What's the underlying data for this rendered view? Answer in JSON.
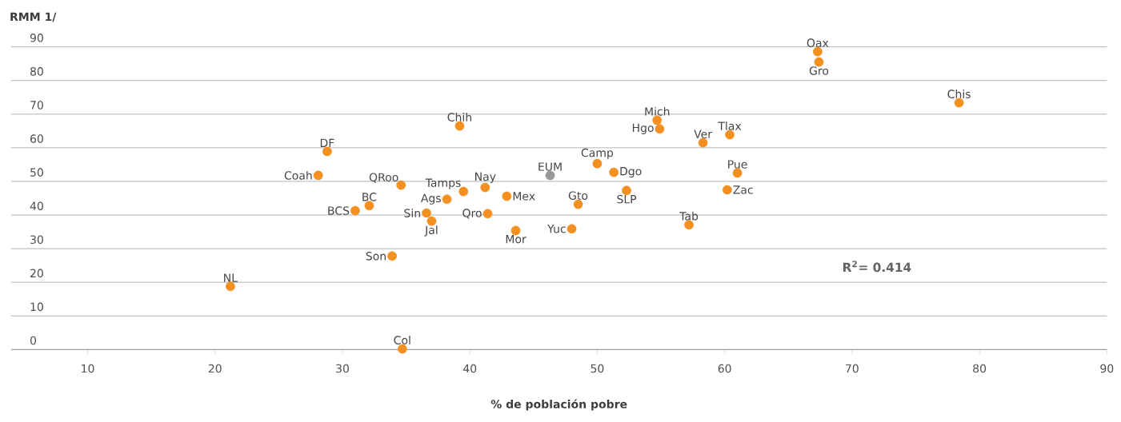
{
  "chart_data": {
    "type": "scatter",
    "xlabel": "% de población pobre",
    "ylabel": "RMM 1/",
    "marker": "circle",
    "grid": "y",
    "xlim": [
      4,
      90
    ],
    "ylim": [
      0,
      90
    ],
    "xticks": [
      10,
      20,
      30,
      40,
      50,
      60,
      70,
      80,
      90
    ],
    "yticks": [
      0,
      10,
      20,
      30,
      40,
      50,
      60,
      70,
      80,
      90
    ],
    "x": [
      67.3,
      67.4,
      78.4,
      54.7,
      54.9,
      60.4,
      58.3,
      39.2,
      28.8,
      50.0,
      51.3,
      61.0,
      46.3,
      28.1,
      34.6,
      41.2,
      39.5,
      60.2,
      52.3,
      42.9,
      38.2,
      48.5,
      32.1,
      31.0,
      36.6,
      41.4,
      37.0,
      57.2,
      48.0,
      43.6,
      33.9,
      21.2,
      34.7
    ],
    "values": [
      88.6,
      85.5,
      73.4,
      68.2,
      65.6,
      63.9,
      61.5,
      66.5,
      58.9,
      55.3,
      52.7,
      52.5,
      51.8,
      51.8,
      48.9,
      48.2,
      47.0,
      47.5,
      47.3,
      45.6,
      44.7,
      43.2,
      42.8,
      41.3,
      40.6,
      40.4,
      38.2,
      37.1,
      35.9,
      35.4,
      27.8,
      18.8,
      0.2
    ],
    "colors": [
      "#f39020",
      "#f39020",
      "#f39020",
      "#f39020",
      "#f39020",
      "#f39020",
      "#f39020",
      "#f39020",
      "#f39020",
      "#f39020",
      "#f39020",
      "#f39020",
      "#999999",
      "#f39020",
      "#f39020",
      "#f39020",
      "#f39020",
      "#f39020",
      "#f39020",
      "#f39020",
      "#f39020",
      "#f39020",
      "#f39020",
      "#f39020",
      "#f39020",
      "#f39020",
      "#f39020",
      "#f39020",
      "#f39020",
      "#f39020",
      "#f39020",
      "#f39020",
      "#f39020"
    ],
    "annotations": [
      {
        "text": "Oax",
        "x": 67.3,
        "y": 88.6
      },
      {
        "text": "Gro",
        "x": 67.4,
        "y": 85.5
      },
      {
        "text": "Chis",
        "x": 78.4,
        "y": 73.4
      },
      {
        "text": "Mich",
        "x": 54.7,
        "y": 68.2
      },
      {
        "text": "Hgo",
        "x": 54.9,
        "y": 65.6
      },
      {
        "text": "Tlax",
        "x": 60.4,
        "y": 63.9
      },
      {
        "text": "Ver",
        "x": 58.3,
        "y": 61.5
      },
      {
        "text": "Chih",
        "x": 39.2,
        "y": 66.5
      },
      {
        "text": "DF",
        "x": 28.8,
        "y": 58.9
      },
      {
        "text": "Camp",
        "x": 50.0,
        "y": 55.3
      },
      {
        "text": "Dgo",
        "x": 51.3,
        "y": 52.7
      },
      {
        "text": "Pue",
        "x": 61.0,
        "y": 52.5
      },
      {
        "text": "EUM",
        "x": 46.3,
        "y": 51.8
      },
      {
        "text": "Coah",
        "x": 28.1,
        "y": 51.8
      },
      {
        "text": "QRoo",
        "x": 34.6,
        "y": 48.9
      },
      {
        "text": "Nay",
        "x": 41.2,
        "y": 48.2
      },
      {
        "text": "Tamps",
        "x": 39.5,
        "y": 47.0
      },
      {
        "text": "Zac",
        "x": 60.2,
        "y": 47.5
      },
      {
        "text": "SLP",
        "x": 52.3,
        "y": 47.3
      },
      {
        "text": "Mex",
        "x": 42.9,
        "y": 45.6
      },
      {
        "text": "Ags",
        "x": 38.2,
        "y": 44.7
      },
      {
        "text": "Gto",
        "x": 48.5,
        "y": 43.2
      },
      {
        "text": "BC",
        "x": 32.1,
        "y": 42.8
      },
      {
        "text": "BCS",
        "x": 31.0,
        "y": 41.3
      },
      {
        "text": "Sin",
        "x": 36.6,
        "y": 40.6
      },
      {
        "text": "Qro",
        "x": 41.4,
        "y": 40.4
      },
      {
        "text": "Jal",
        "x": 37.0,
        "y": 38.2
      },
      {
        "text": "Tab",
        "x": 57.2,
        "y": 37.1
      },
      {
        "text": "Yuc",
        "x": 48.0,
        "y": 35.9
      },
      {
        "text": "Mor",
        "x": 43.6,
        "y": 35.4
      },
      {
        "text": "Son",
        "x": 33.9,
        "y": 27.8
      },
      {
        "text": "NL",
        "x": 21.2,
        "y": 18.8
      },
      {
        "text": "Col",
        "x": 34.7,
        "y": 0.2
      },
      "R$^{2}$= 0.414"
    ]
  }
}
